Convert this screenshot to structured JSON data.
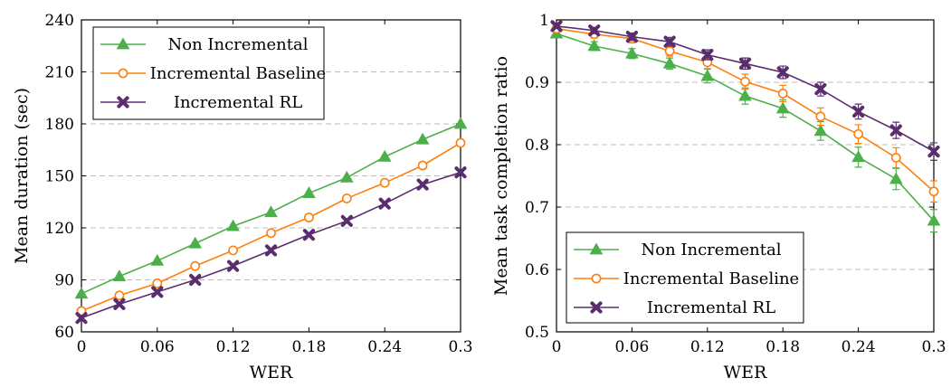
{
  "colors": {
    "non_incremental": "#4daf4a",
    "incremental_baseline": "#ff7f0e",
    "incremental_rl": "#5a2d6e",
    "grid": "#bdbdbd"
  },
  "chart_data": [
    {
      "type": "line",
      "xlabel": "WER",
      "ylabel": "Mean duration (sec)",
      "xlim": [
        0,
        0.3
      ],
      "ylim": [
        60,
        240
      ],
      "xticks": [
        "0",
        "0.06",
        "0.12",
        "0.18",
        "0.24",
        "0.3"
      ],
      "xtick_values": [
        0,
        0.06,
        0.12,
        0.18,
        0.24,
        0.3
      ],
      "yticks": [
        "60",
        "90",
        "120",
        "150",
        "180",
        "210",
        "240"
      ],
      "ytick_values": [
        60,
        90,
        120,
        150,
        180,
        210,
        240
      ],
      "grid": "horizontal dashed",
      "legend_position": "top-left",
      "x": [
        0,
        0.03,
        0.06,
        0.09,
        0.12,
        0.15,
        0.18,
        0.21,
        0.24,
        0.27,
        0.3
      ],
      "series": [
        {
          "name": "Non Incremental",
          "marker": "triangle",
          "color_key": "non_incremental",
          "values": [
            82,
            92,
            101,
            111,
            121,
            129,
            140,
            149,
            161,
            171,
            180
          ]
        },
        {
          "name": "Incremental Baseline",
          "marker": "circle",
          "color_key": "incremental_baseline",
          "values": [
            72,
            81,
            88,
            98,
            107,
            117,
            126,
            137,
            146,
            156,
            169
          ]
        },
        {
          "name": "Incremental RL",
          "marker": "x-filled",
          "color_key": "incremental_rl",
          "values": [
            68,
            76,
            83,
            90,
            98,
            107,
            116,
            124,
            134,
            145,
            152
          ]
        }
      ]
    },
    {
      "type": "line",
      "xlabel": "WER",
      "ylabel": "Mean task completion ratio",
      "xlim": [
        0,
        0.3
      ],
      "ylim": [
        0.5,
        1
      ],
      "xticks": [
        "0",
        "0.06",
        "0.12",
        "0.18",
        "0.24",
        "0.3"
      ],
      "xtick_values": [
        0,
        0.06,
        0.12,
        0.18,
        0.24,
        0.3
      ],
      "yticks": [
        "0.5",
        "0.6",
        "0.7",
        "0.8",
        "0.9",
        "1"
      ],
      "ytick_values": [
        0.5,
        0.6,
        0.7,
        0.8,
        0.9,
        1
      ],
      "grid": "horizontal dashed",
      "legend_position": "bottom-left",
      "error_bars": true,
      "x": [
        0,
        0.03,
        0.06,
        0.09,
        0.12,
        0.15,
        0.18,
        0.21,
        0.24,
        0.27,
        0.3
      ],
      "series": [
        {
          "name": "Non Incremental",
          "marker": "triangle",
          "color_key": "non_incremental",
          "values": [
            0.978,
            0.958,
            0.946,
            0.93,
            0.91,
            0.878,
            0.858,
            0.822,
            0.78,
            0.745,
            0.678
          ],
          "errors": [
            0.004,
            0.007,
            0.008,
            0.009,
            0.011,
            0.013,
            0.014,
            0.015,
            0.016,
            0.017,
            0.018
          ]
        },
        {
          "name": "Incremental Baseline",
          "marker": "circle",
          "color_key": "incremental_baseline",
          "values": [
            0.986,
            0.977,
            0.97,
            0.95,
            0.932,
            0.901,
            0.882,
            0.845,
            0.817,
            0.779,
            0.725
          ],
          "errors": [
            0.004,
            0.006,
            0.007,
            0.008,
            0.01,
            0.012,
            0.013,
            0.014,
            0.015,
            0.016,
            0.017
          ]
        },
        {
          "name": "Incremental RL",
          "marker": "x-filled",
          "color_key": "incremental_rl",
          "values": [
            0.99,
            0.983,
            0.973,
            0.965,
            0.944,
            0.93,
            0.916,
            0.889,
            0.853,
            0.823,
            0.789
          ],
          "errors": [
            0.003,
            0.005,
            0.006,
            0.007,
            0.008,
            0.009,
            0.01,
            0.011,
            0.012,
            0.013,
            0.014
          ]
        }
      ]
    }
  ]
}
